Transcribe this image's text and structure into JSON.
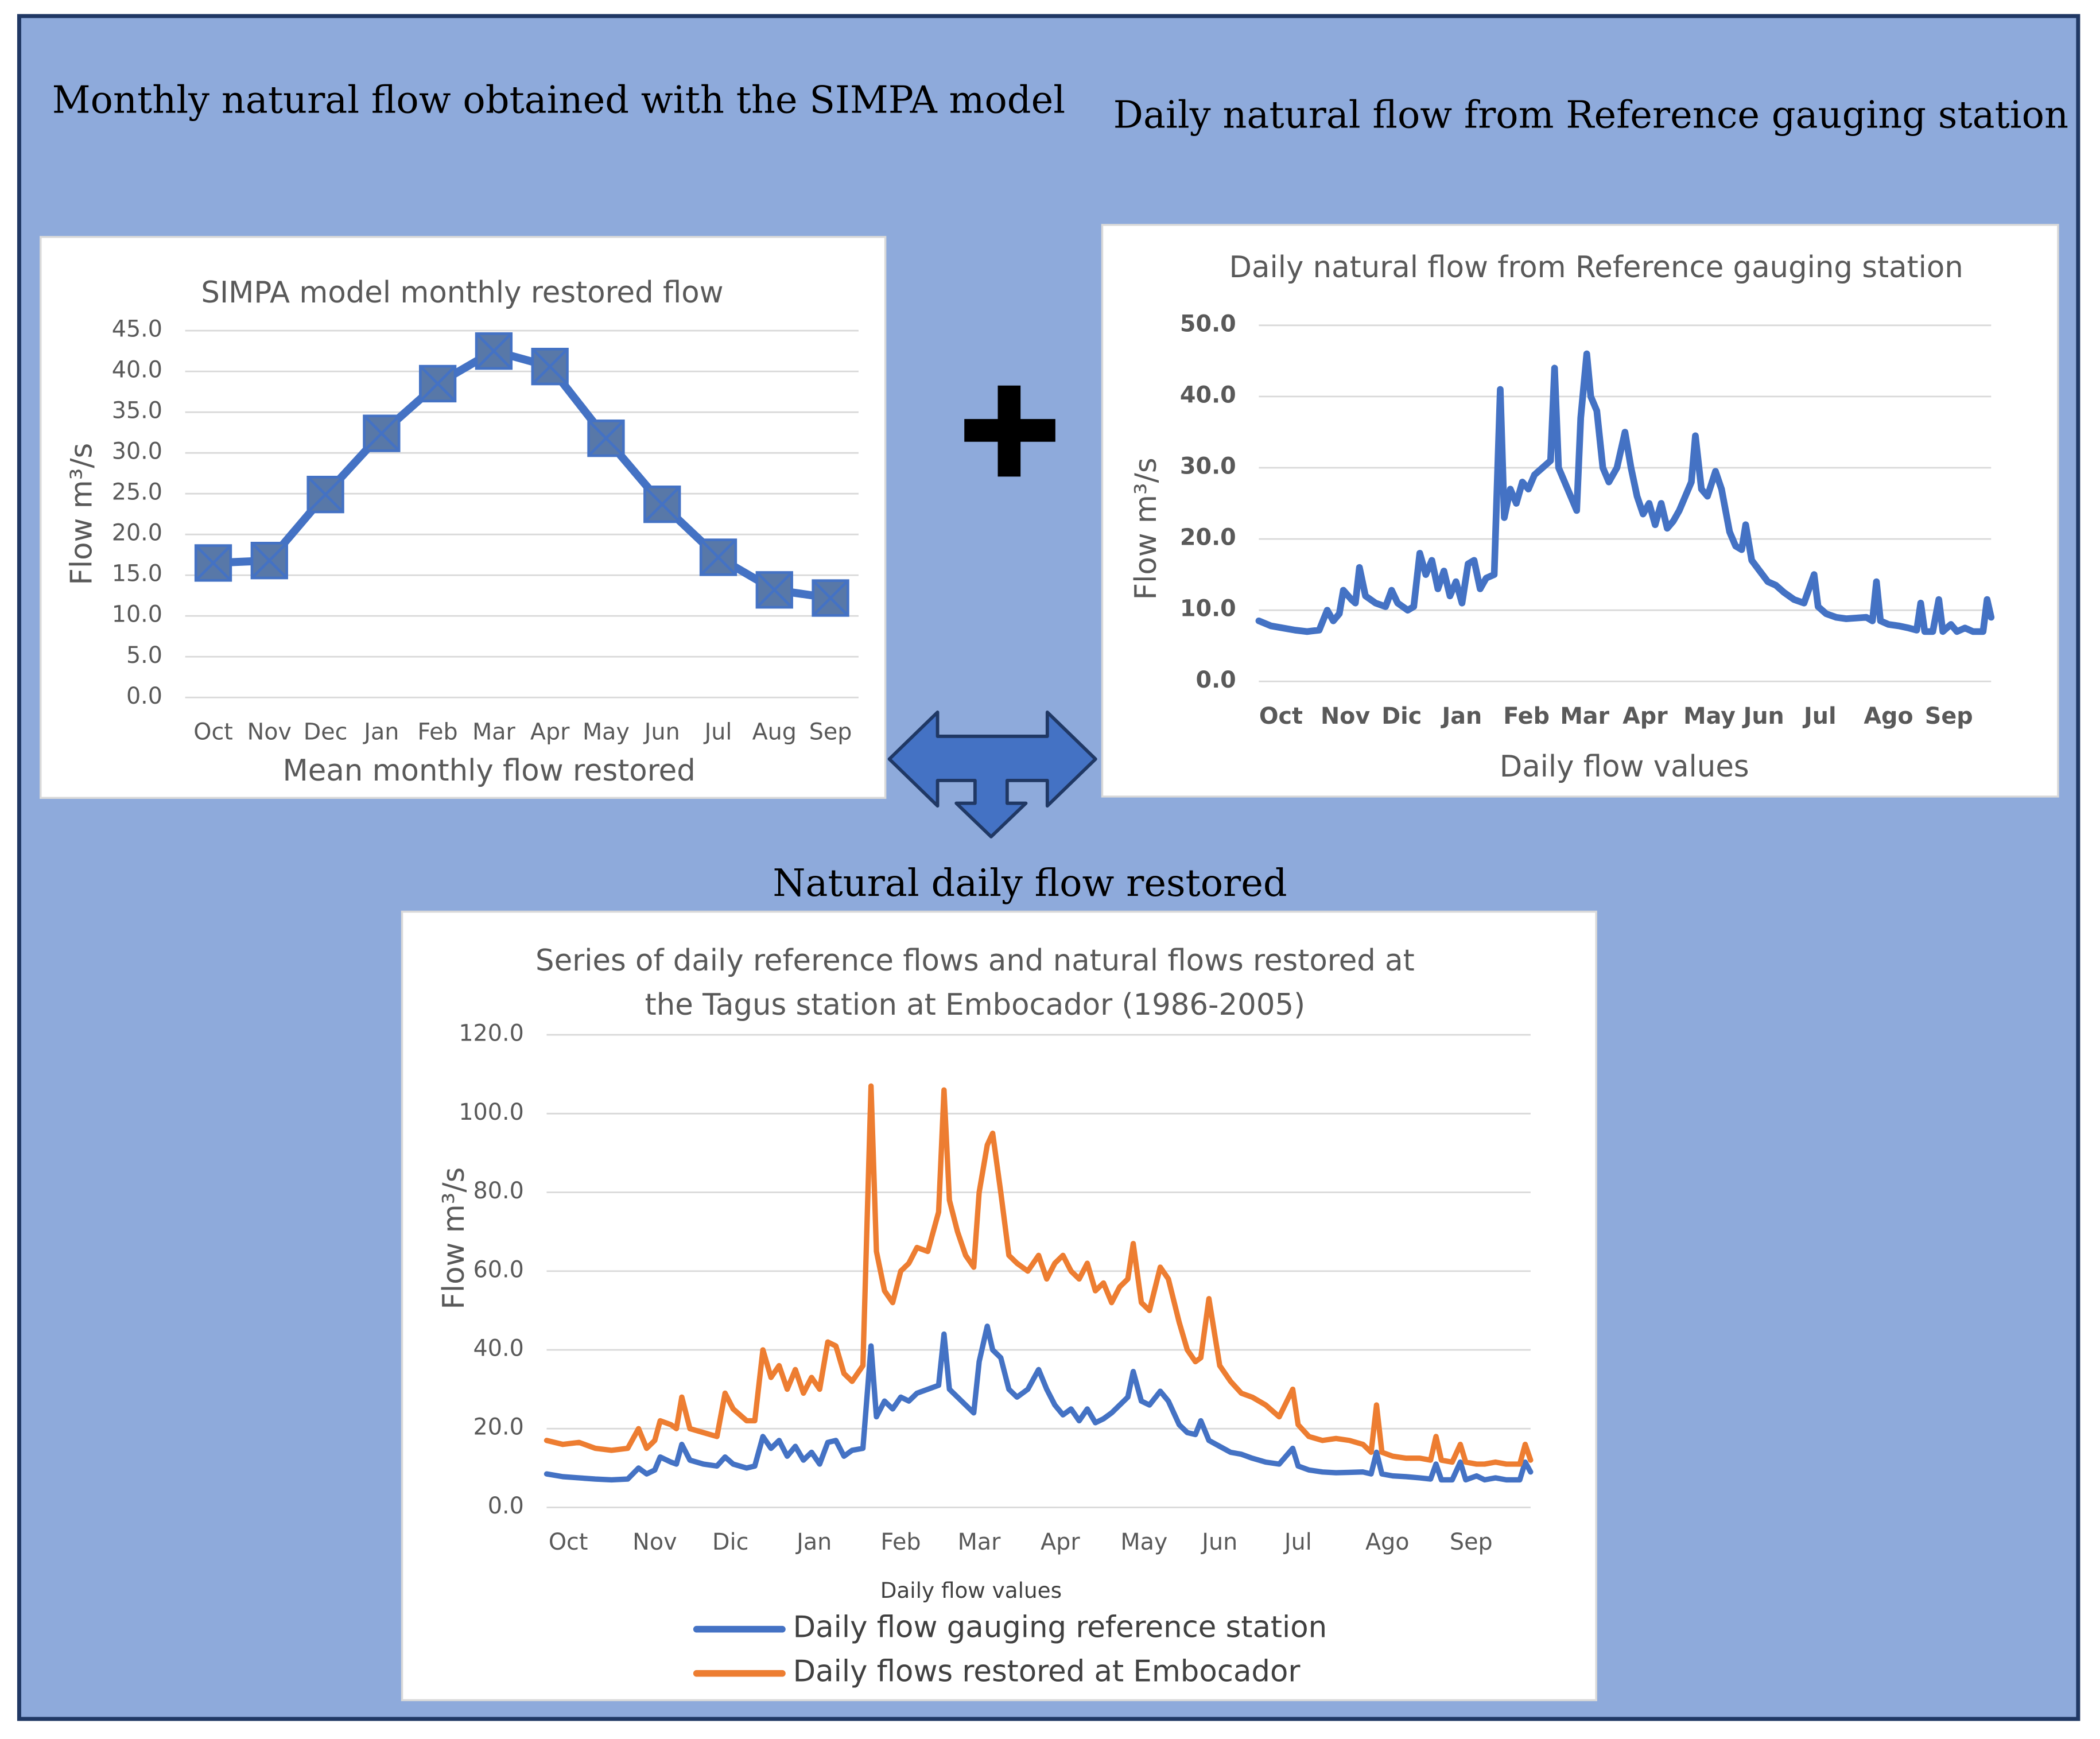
{
  "headings": [
    "Monthly natural flow obtained with the SIMPA model",
    "Daily natural flow from Reference gauging station",
    "Natural daily flow restored"
  ],
  "chart_data": [
    {
      "type": "line",
      "title": "SIMPA model monthly restored flow",
      "y_label": "Flow m³/s",
      "x_label": "Mean monthly flow restored",
      "categories": [
        "Oct",
        "Nov",
        "Dec",
        "Jan",
        "Feb",
        "Mar",
        "Apr",
        "May",
        "Jun",
        "Jul",
        "Aug",
        "Sep"
      ],
      "values": [
        16.5,
        16.8,
        24.9,
        32.4,
        38.5,
        42.5,
        40.6,
        31.8,
        23.7,
        17.2,
        13.2,
        12.2
      ],
      "color": "#4472c4",
      "marker": "square-x",
      "marker_color": "#5878a8",
      "ylim": [
        0,
        45
      ],
      "yticks": [
        {
          "value": 0,
          "label": "0.0"
        },
        {
          "value": 5,
          "label": "5.0"
        },
        {
          "value": 10,
          "label": "10.0"
        },
        {
          "value": 15,
          "label": "15.0"
        },
        {
          "value": 20,
          "label": "20.0"
        },
        {
          "value": 25,
          "label": "25.0"
        },
        {
          "value": 30,
          "label": "30.0"
        },
        {
          "value": 35,
          "label": "35.0"
        },
        {
          "value": 40,
          "label": "40.0"
        },
        {
          "value": 45,
          "label": "45.0"
        }
      ],
      "grid": true
    },
    {
      "type": "line",
      "title": "Daily natural flow from Reference gauging station",
      "y_label": "Flow m³/s",
      "x_label": "Daily flow values",
      "x": [
        0,
        6,
        12,
        18,
        24,
        30,
        34,
        37,
        40,
        42,
        46,
        48,
        50,
        53,
        58,
        63,
        66,
        69,
        74,
        77,
        80,
        83,
        86,
        89,
        92,
        95,
        98,
        101,
        104,
        107,
        110,
        113,
        117,
        120,
        122,
        125,
        128,
        131,
        134,
        137,
        141,
        145,
        147,
        149,
        152,
        155,
        158,
        160,
        163,
        165,
        168,
        171,
        174,
        178,
        182,
        185,
        188,
        191,
        194,
        197,
        200,
        203,
        206,
        209,
        212,
        215,
        217,
        220,
        223,
        227,
        230,
        234,
        237,
        240,
        242,
        245,
        249,
        253,
        257,
        261,
        266,
        271,
        276,
        278,
        282,
        287,
        292,
        297,
        302,
        305,
        307,
        309,
        313,
        318,
        323,
        327,
        329,
        331,
        335,
        338,
        340,
        344,
        347,
        351,
        355,
        360,
        362,
        364
      ],
      "values": [
        8.5,
        7.8,
        7.5,
        7.2,
        7.0,
        7.2,
        10.0,
        8.5,
        9.5,
        12.8,
        11.5,
        11.0,
        16.0,
        12.0,
        11.0,
        10.5,
        12.8,
        11.0,
        10.0,
        10.5,
        18.0,
        15.0,
        17.0,
        13.0,
        15.5,
        12.0,
        14.0,
        11.0,
        16.5,
        17.0,
        13.0,
        14.5,
        15.0,
        41.0,
        23.0,
        27.0,
        25.0,
        28.0,
        27.0,
        29.0,
        30.0,
        31.0,
        44.0,
        30.0,
        28.0,
        26.0,
        24.0,
        37.0,
        46.0,
        40.0,
        38.0,
        30.0,
        28.0,
        30.0,
        35.0,
        30.0,
        26.0,
        23.5,
        25.0,
        22.0,
        25.0,
        21.5,
        22.5,
        24.0,
        26.0,
        28.0,
        34.5,
        27.0,
        26.0,
        29.5,
        27.0,
        21.0,
        19.0,
        18.5,
        22.0,
        17.0,
        15.5,
        14.0,
        13.5,
        12.5,
        11.5,
        11.0,
        15.0,
        10.5,
        9.5,
        9.0,
        8.8,
        8.9,
        9.0,
        8.5,
        14.0,
        8.5,
        8.0,
        7.8,
        7.5,
        7.2,
        11.0,
        7.0,
        7.0,
        11.5,
        7.0,
        8.0,
        7.0,
        7.5,
        7.0,
        7.0,
        11.5,
        9.0
      ],
      "color": "#4472c4",
      "xlim": [
        0,
        364
      ],
      "xticks": [
        {
          "value": 11,
          "label": "Oct"
        },
        {
          "value": 43,
          "label": "Nov"
        },
        {
          "value": 71,
          "label": "Dic"
        },
        {
          "value": 101,
          "label": "Jan"
        },
        {
          "value": 133,
          "label": "Feb"
        },
        {
          "value": 162,
          "label": "Mar"
        },
        {
          "value": 192,
          "label": "Apr"
        },
        {
          "value": 224,
          "label": "May"
        },
        {
          "value": 251,
          "label": "Jun"
        },
        {
          "value": 279,
          "label": "Jul"
        },
        {
          "value": 313,
          "label": "Ago"
        },
        {
          "value": 343,
          "label": "Sep"
        }
      ],
      "ylim": [
        0,
        50
      ],
      "yticks": [
        {
          "value": 0,
          "label": "0.0"
        },
        {
          "value": 10,
          "label": "10.0"
        },
        {
          "value": 20,
          "label": "20.0"
        },
        {
          "value": 30,
          "label": "30.0"
        },
        {
          "value": 40,
          "label": "40.0"
        },
        {
          "value": 50,
          "label": "50.0"
        }
      ],
      "grid": true
    },
    {
      "type": "line",
      "title": [
        "Series of daily reference flows and natural flows restored at",
        "the Tagus station at Embocador  (1986-2005)"
      ],
      "y_label": "Flow m³/s",
      "x_label": "Daily flow values",
      "x": [
        0,
        6,
        12,
        18,
        24,
        30,
        34,
        37,
        40,
        42,
        46,
        48,
        50,
        53,
        58,
        63,
        66,
        69,
        74,
        77,
        80,
        83,
        86,
        89,
        92,
        95,
        98,
        101,
        104,
        107,
        110,
        113,
        117,
        120,
        122,
        125,
        128,
        131,
        134,
        137,
        141,
        145,
        147,
        149,
        152,
        155,
        158,
        160,
        163,
        165,
        168,
        171,
        174,
        178,
        182,
        185,
        188,
        191,
        194,
        197,
        200,
        203,
        206,
        209,
        212,
        215,
        217,
        220,
        223,
        227,
        230,
        234,
        237,
        240,
        242,
        245,
        249,
        253,
        257,
        261,
        266,
        271,
        276,
        278,
        282,
        287,
        292,
        297,
        302,
        305,
        307,
        309,
        313,
        318,
        323,
        327,
        329,
        331,
        335,
        338,
        340,
        344,
        347,
        351,
        355,
        360,
        362,
        364
      ],
      "series": [
        {
          "name": "Daily flow gauging reference station",
          "color": "#4472c4",
          "values": [
            8.5,
            7.8,
            7.5,
            7.2,
            7.0,
            7.2,
            10.0,
            8.5,
            9.5,
            12.8,
            11.5,
            11.0,
            16.0,
            12.0,
            11.0,
            10.5,
            12.8,
            11.0,
            10.0,
            10.5,
            18.0,
            15.0,
            17.0,
            13.0,
            15.5,
            12.0,
            14.0,
            11.0,
            16.5,
            17.0,
            13.0,
            14.5,
            15.0,
            41.0,
            23.0,
            27.0,
            25.0,
            28.0,
            27.0,
            29.0,
            30.0,
            31.0,
            44.0,
            30.0,
            28.0,
            26.0,
            24.0,
            37.0,
            46.0,
            40.0,
            38.0,
            30.0,
            28.0,
            30.0,
            35.0,
            30.0,
            26.0,
            23.5,
            25.0,
            22.0,
            25.0,
            21.5,
            22.5,
            24.0,
            26.0,
            28.0,
            34.5,
            27.0,
            26.0,
            29.5,
            27.0,
            21.0,
            19.0,
            18.5,
            22.0,
            17.0,
            15.5,
            14.0,
            13.5,
            12.5,
            11.5,
            11.0,
            15.0,
            10.5,
            9.5,
            9.0,
            8.8,
            8.9,
            9.0,
            8.5,
            14.0,
            8.5,
            8.0,
            7.8,
            7.5,
            7.2,
            11.0,
            7.0,
            7.0,
            11.5,
            7.0,
            8.0,
            7.0,
            7.5,
            7.0,
            7.0,
            11.5,
            9.0
          ]
        },
        {
          "name": "Daily flows restored at Embocador",
          "color": "#ed7d31",
          "values": [
            17,
            16,
            16.5,
            15,
            14.5,
            15,
            20,
            15,
            17,
            22,
            21,
            20,
            28,
            20,
            19,
            18,
            29,
            25,
            22,
            22,
            40,
            33,
            36,
            30,
            35,
            29,
            33,
            30,
            42,
            41,
            34,
            32,
            36,
            107,
            65,
            55,
            52,
            60,
            62,
            66,
            65,
            75,
            106,
            78,
            70,
            64,
            61,
            80,
            92,
            95,
            80,
            64,
            62,
            60,
            64,
            58,
            62,
            64,
            60,
            58,
            62,
            55,
            57,
            52,
            56,
            58,
            67,
            52,
            50,
            61,
            58,
            47,
            40,
            37,
            38,
            53,
            36,
            32,
            29,
            28,
            26,
            23,
            30,
            21,
            18,
            17,
            17.5,
            17,
            16,
            14,
            26,
            14,
            13,
            12.5,
            12.5,
            12,
            18,
            12,
            11.5,
            16,
            11.5,
            11,
            11,
            11.5,
            11,
            11,
            16,
            12
          ]
        }
      ],
      "xlim": [
        0,
        364
      ],
      "xticks": [
        {
          "value": 8,
          "label": "Oct"
        },
        {
          "value": 40,
          "label": "Nov"
        },
        {
          "value": 68,
          "label": "Dic"
        },
        {
          "value": 99,
          "label": "Jan"
        },
        {
          "value": 131,
          "label": "Feb"
        },
        {
          "value": 160,
          "label": "Mar"
        },
        {
          "value": 190,
          "label": "Apr"
        },
        {
          "value": 221,
          "label": "May"
        },
        {
          "value": 249,
          "label": "Jun"
        },
        {
          "value": 278,
          "label": "Jul"
        },
        {
          "value": 311,
          "label": "Ago"
        },
        {
          "value": 342,
          "label": "Sep"
        }
      ],
      "ylim": [
        0,
        120
      ],
      "yticks": [
        {
          "value": 0,
          "label": "0.0"
        },
        {
          "value": 20,
          "label": "20.0"
        },
        {
          "value": 40,
          "label": "40.0"
        },
        {
          "value": 60,
          "label": "60.0"
        },
        {
          "value": 80,
          "label": "80.0"
        },
        {
          "value": 100,
          "label": "100.0"
        },
        {
          "value": 120,
          "label": "120.0"
        }
      ],
      "grid": true,
      "legend": "bottom"
    }
  ]
}
